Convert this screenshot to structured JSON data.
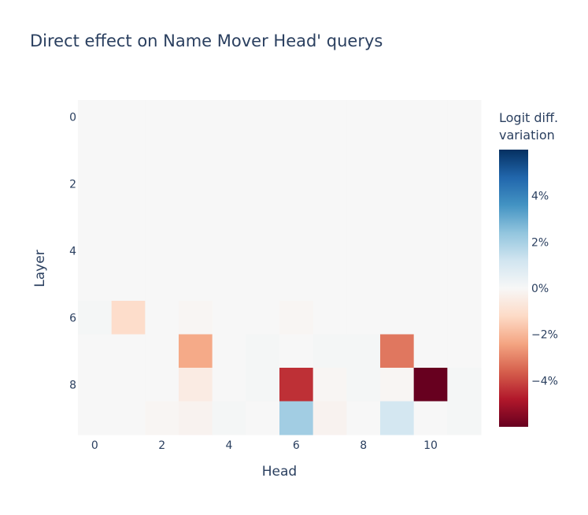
{
  "chart_data": {
    "type": "heatmap",
    "title": "Direct effect on Name Mover Head' querys",
    "xlabel": "Head",
    "ylabel": "Layer",
    "x_ticks": [
      0,
      2,
      4,
      6,
      8,
      10
    ],
    "y_ticks": [
      0,
      2,
      4,
      6,
      8
    ],
    "rows": [
      0,
      1,
      2,
      3,
      4,
      5,
      6,
      7,
      8,
      9
    ],
    "cols": [
      0,
      1,
      2,
      3,
      4,
      5,
      6,
      7,
      8,
      9,
      10,
      11
    ],
    "zmin": -6,
    "zmax": 6,
    "colorscale": [
      "#67001f",
      "#b2182b",
      "#d6604d",
      "#f4a582",
      "#fddbc7",
      "#f7f7f7",
      "#d1e5f0",
      "#92c5de",
      "#4393c3",
      "#2166ac",
      "#053061"
    ],
    "z": [
      [
        0,
        0,
        0,
        0,
        0,
        0,
        0,
        0,
        0,
        0,
        0,
        0
      ],
      [
        0,
        0,
        0,
        0,
        0,
        0,
        0,
        0,
        0,
        0,
        0,
        0
      ],
      [
        0,
        0,
        0,
        0,
        0,
        0,
        0,
        0,
        0,
        0,
        0,
        0
      ],
      [
        0,
        0,
        0,
        0,
        0,
        0,
        0,
        0,
        0,
        0,
        0,
        0
      ],
      [
        0,
        0,
        0,
        0,
        0,
        0,
        0,
        0,
        0,
        0,
        0,
        0
      ],
      [
        0,
        0,
        0,
        0,
        0,
        0,
        0,
        0,
        0,
        0,
        0,
        0
      ],
      [
        0.1,
        -1.1,
        0,
        -0.1,
        0,
        0,
        -0.1,
        0,
        0,
        0,
        0,
        0
      ],
      [
        0,
        0,
        0,
        -2.3,
        0,
        0.1,
        0,
        0.1,
        0.1,
        -3.2,
        0,
        0
      ],
      [
        0,
        0,
        0,
        -0.5,
        0,
        0.1,
        -4.4,
        -0.1,
        0.1,
        -0.1,
        -6.0,
        0.1
      ],
      [
        0,
        0,
        -0.1,
        -0.2,
        0.1,
        0,
        2.1,
        -0.2,
        0,
        1.1,
        0,
        0.1
      ]
    ],
    "colorbar": {
      "title_lines": [
        "Logit diff.",
        "variation"
      ],
      "ticks": [
        {
          "value": 4,
          "label": "4%"
        },
        {
          "value": 2,
          "label": "2%"
        },
        {
          "value": 0,
          "label": "0%"
        },
        {
          "value": -2,
          "label": "−2%"
        },
        {
          "value": -4,
          "label": "−4%"
        }
      ]
    }
  }
}
